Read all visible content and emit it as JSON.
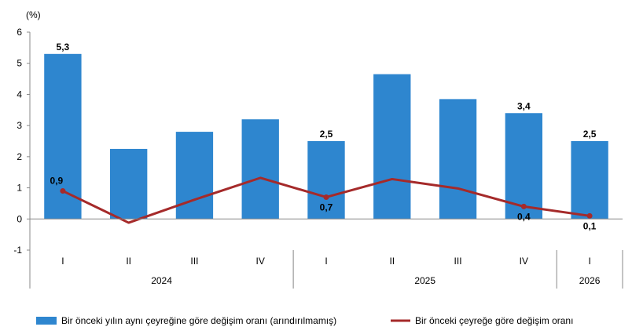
{
  "chart_data": {
    "type": "bar",
    "unit": "(%)",
    "categories": [
      "I",
      "II",
      "III",
      "IV",
      "I",
      "II",
      "III",
      "IV",
      "I"
    ],
    "groups": [
      {
        "label": "2024",
        "count": 4
      },
      {
        "label": "2025",
        "count": 4
      },
      {
        "label": "2026",
        "count": 1
      }
    ],
    "ylim": [
      -1,
      6
    ],
    "yticks": [
      -1,
      0,
      1,
      2,
      3,
      4,
      5,
      6
    ],
    "grid": false,
    "legend_position": "bottom",
    "series": [
      {
        "name": "Bir önceki yılın aynı çeyreğine göre değişim oranı (arındırılmamış)",
        "type": "bar",
        "color": "#2E86CF",
        "values": [
          5.3,
          2.25,
          2.8,
          3.2,
          2.5,
          4.65,
          3.85,
          3.4,
          2.5
        ],
        "data_labels": [
          "5,3",
          "",
          "",
          "",
          "2,5",
          "",
          "",
          "3,4",
          "2,5"
        ]
      },
      {
        "name": "Bir önceki çeyreğe göre değişim oranı",
        "type": "line",
        "color": "#A52A2A",
        "values": [
          0.9,
          -0.12,
          0.62,
          1.32,
          0.7,
          1.28,
          0.98,
          0.4,
          0.1
        ],
        "data_labels": [
          "0,9",
          "",
          "",
          "",
          "0,7",
          "",
          "",
          "0,4",
          "0,1"
        ],
        "markers": [
          true,
          false,
          false,
          false,
          true,
          false,
          false,
          true,
          true
        ]
      }
    ]
  }
}
